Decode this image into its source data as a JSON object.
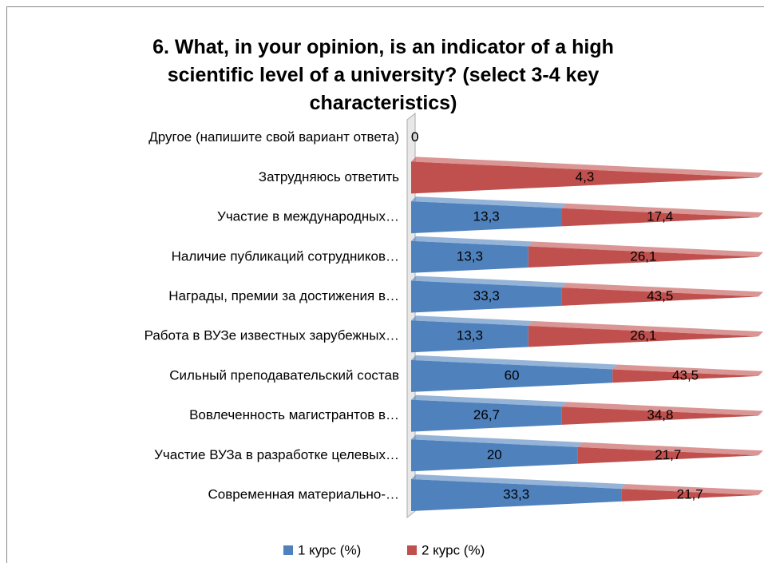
{
  "chart_data": {
    "type": "bar_100_stacked_pyramid",
    "title": "6. What, in your opinion, is an indicator of a high scientific level of a university? (select 3-4 key characteristics)",
    "categories": [
      "Современная материально-…",
      "Участие ВУЗа в разработке целевых…",
      "Вовлеченность магистрантов в…",
      "Сильный преподавательский состав",
      "Работа в ВУЗе известных зарубежных…",
      "Награды, премии за достижения в…",
      "Наличие публикаций сотрудников…",
      "Участие в международных…",
      "Затрудняюсь ответить",
      "Другое (напишите свой вариант ответа)"
    ],
    "series": [
      {
        "name": "1 курс (%)",
        "color": "#4f81bd",
        "values": [
          33.3,
          20,
          26.7,
          60,
          13.3,
          33.3,
          13.3,
          13.3,
          0,
          0
        ],
        "value_labels": [
          "33,3",
          "20",
          "26,7",
          "60",
          "13,3",
          "33,3",
          "13,3",
          "13,3",
          "0",
          "0"
        ]
      },
      {
        "name": "2 курс (%)",
        "color": "#c0504d",
        "values": [
          21.7,
          21.7,
          34.8,
          43.5,
          26.1,
          43.5,
          26.1,
          17.4,
          4.3,
          0
        ],
        "value_labels": [
          "21,7",
          "21,7",
          "34,8",
          "43,5",
          "26,1",
          "43,5",
          "26,1",
          "17,4",
          "4,3",
          "0"
        ]
      }
    ],
    "legend": "bottom"
  }
}
